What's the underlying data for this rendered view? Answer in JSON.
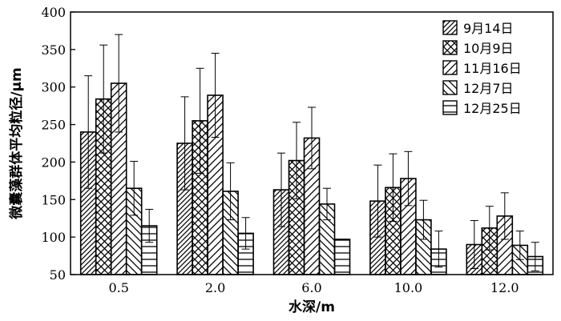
{
  "chart_data": {
    "type": "bar",
    "xlabel": "水深/m",
    "ylabel": "微囊藻群体平均粒径/μm",
    "ylim": [
      50,
      400
    ],
    "yticks": [
      50,
      100,
      150,
      200,
      250,
      300,
      350,
      400
    ],
    "grid": false,
    "legend_position": "top-right",
    "categories": [
      "0.5",
      "2.0",
      "6.0",
      "10.0",
      "12.0"
    ],
    "series": [
      {
        "name": "9月14日",
        "pattern": "diagonal-forward",
        "values": [
          240,
          225,
          163,
          148,
          90
        ],
        "errors": [
          75,
          62,
          49,
          48,
          32
        ]
      },
      {
        "name": "10月9日",
        "pattern": "crosshatch",
        "values": [
          284,
          255,
          202,
          166,
          112
        ],
        "errors": [
          72,
          70,
          51,
          45,
          29
        ]
      },
      {
        "name": "11月16日",
        "pattern": "diagonal-forward-wide",
        "values": [
          305,
          289,
          232,
          178,
          128
        ],
        "errors": [
          65,
          56,
          41,
          36,
          31
        ]
      },
      {
        "name": "12月7日",
        "pattern": "diagonal-back",
        "values": [
          165,
          161,
          144,
          123,
          89
        ],
        "errors": [
          36,
          38,
          21,
          26,
          19
        ]
      },
      {
        "name": "12月25日",
        "pattern": "horizontal",
        "values": [
          115,
          105,
          97,
          84,
          74
        ],
        "errors": [
          22,
          21,
          0,
          24,
          19
        ]
      }
    ]
  }
}
